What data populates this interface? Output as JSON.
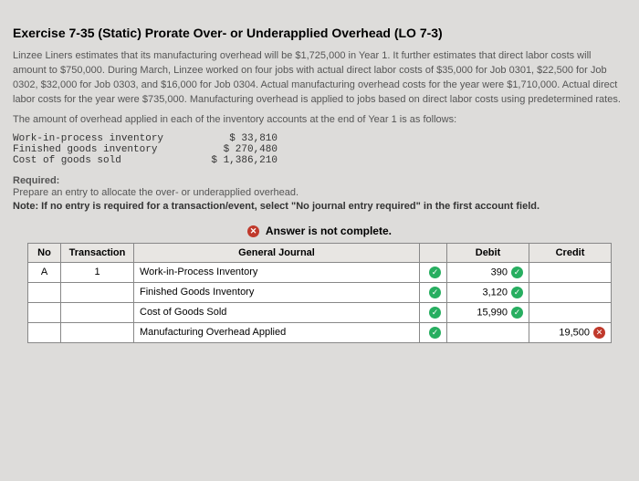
{
  "title": "Exercise 7-35 (Static) Prorate Over- or Underapplied Overhead (LO 7-3)",
  "p1": "Linzee Liners estimates that its manufacturing overhead will be $1,725,000 in Year 1. It further estimates that direct labor costs will amount to $750,000. During March, Linzee worked on four jobs with actual direct labor costs of $35,000 for Job 0301, $22,500 for Job 0302, $32,000 for Job 0303, and $16,000 for Job 0304. Actual manufacturing overhead costs for the year were $1,710,000. Actual direct labor costs for the year were $735,000. Manufacturing overhead is applied to jobs based on direct labor costs using predetermined rates.",
  "p2": "The amount of overhead applied in each of the inventory accounts at the end of Year 1 is as follows:",
  "inv": [
    {
      "label": "Work-in-process inventory",
      "value": "$ 33,810"
    },
    {
      "label": "Finished goods inventory",
      "value": "$ 270,480"
    },
    {
      "label": "Cost of goods sold",
      "value": "$ 1,386,210"
    }
  ],
  "required_head": "Required:",
  "required_text": "Prepare an entry to allocate the over- or underapplied overhead.",
  "note_prefix": "Note: If no entry is required for a transaction/event, select \"No journal entry required\" in the first account field.",
  "status": "Answer is not complete.",
  "headers": {
    "no": "No",
    "trans": "Transaction",
    "gj": "General Journal",
    "debit": "Debit",
    "credit": "Credit"
  },
  "rows": [
    {
      "no": "A",
      "trans": "1",
      "account": "Work-in-Process Inventory",
      "mark": "✓",
      "debit": "390",
      "debit_mark": "✓",
      "credit": "",
      "credit_mark": ""
    },
    {
      "no": "",
      "trans": "",
      "account": "Finished Goods Inventory",
      "mark": "✓",
      "debit": "3,120",
      "debit_mark": "✓",
      "credit": "",
      "credit_mark": ""
    },
    {
      "no": "",
      "trans": "",
      "account": "Cost of Goods Sold",
      "mark": "✓",
      "debit": "15,990",
      "debit_mark": "✓",
      "credit": "",
      "credit_mark": ""
    },
    {
      "no": "",
      "trans": "",
      "account": "Manufacturing Overhead Applied",
      "indent": true,
      "mark": "✓",
      "debit": "",
      "debit_mark": "",
      "credit": "19,500",
      "credit_mark": "✗"
    }
  ]
}
